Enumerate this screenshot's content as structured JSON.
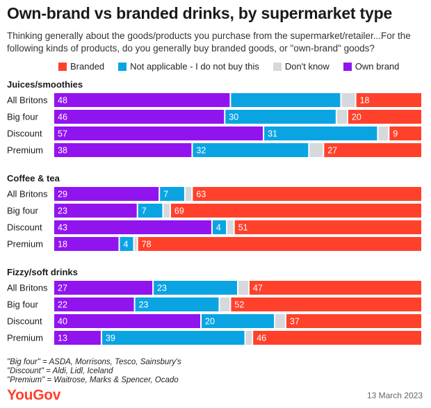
{
  "header": {
    "title": "Own-brand vs branded drinks, by supermarket type",
    "subtitle": "Thinking generally about the goods/products you purchase from the supermarket/retailer...For the following kinds of products, do you generally buy branded goods, or \"own-brand\" goods?"
  },
  "legend": [
    {
      "label": "Branded",
      "color": "#ff412c"
    },
    {
      "label": "Not applicable - I do not buy this",
      "color": "#0aa4e3"
    },
    {
      "label": "Don't know",
      "color": "#d5d8dc"
    },
    {
      "label": "Own brand",
      "color": "#9114ef"
    }
  ],
  "footnotes": {
    "big_four": "\"Big four\" = ASDA, Morrisons, Tesco, Sainsbury's",
    "discount": "\"Discount\" = Aldi, Lidl, Iceland",
    "premium": "\"Premium\" = Waitrose, Marks & Spencer, Ocado"
  },
  "brand": {
    "logo": "YouGov",
    "date": "13 March 2023"
  },
  "chart_data": {
    "type": "bar",
    "orientation": "horizontal-stacked",
    "title": "Own-brand vs branded drinks, by supermarket type",
    "series_order": [
      "Own brand",
      "Not applicable - I do not buy this",
      "Don't know",
      "Branded"
    ],
    "colors": {
      "Own brand": "#9114ef",
      "Not applicable - I do not buy this": "#0aa4e3",
      "Don't know": "#d5d8dc",
      "Branded": "#ff412c"
    },
    "groups": [
      {
        "name": "Juices/smoothies",
        "rows": [
          {
            "label": "All Britons",
            "values": [
              48,
              30,
              4,
              18
            ]
          },
          {
            "label": "Big four",
            "values": [
              46,
              30,
              3,
              20
            ]
          },
          {
            "label": "Discount",
            "values": [
              57,
              31,
              3,
              9
            ]
          },
          {
            "label": "Premium",
            "values": [
              38,
              32,
              4,
              27
            ]
          }
        ]
      },
      {
        "name": "Coffee & tea",
        "rows": [
          {
            "label": "All Britons",
            "values": [
              29,
              7,
              2,
              63
            ]
          },
          {
            "label": "Big four",
            "values": [
              23,
              7,
              2,
              69
            ]
          },
          {
            "label": "Discount",
            "values": [
              43,
              4,
              2,
              51
            ]
          },
          {
            "label": "Premium",
            "values": [
              18,
              4,
              1,
              78
            ]
          }
        ]
      },
      {
        "name": "Fizzy/soft drinks",
        "rows": [
          {
            "label": "All Britons",
            "values": [
              27,
              23,
              3,
              47
            ]
          },
          {
            "label": "Big four",
            "values": [
              22,
              23,
              3,
              52
            ]
          },
          {
            "label": "Discount",
            "values": [
              40,
              20,
              3,
              37
            ]
          },
          {
            "label": "Premium",
            "values": [
              13,
              39,
              2,
              46
            ]
          }
        ]
      }
    ],
    "hidden_labels": [
      [
        0,
        1
      ],
      [
        0,
        2
      ],
      [
        1,
        2
      ],
      [
        2,
        2
      ],
      [
        3,
        2
      ],
      [
        4,
        2
      ],
      [
        5,
        2
      ],
      [
        6,
        2
      ],
      [
        7,
        2
      ],
      [
        8,
        2
      ],
      [
        9,
        2
      ],
      [
        10,
        2
      ],
      [
        11,
        2
      ]
    ]
  }
}
